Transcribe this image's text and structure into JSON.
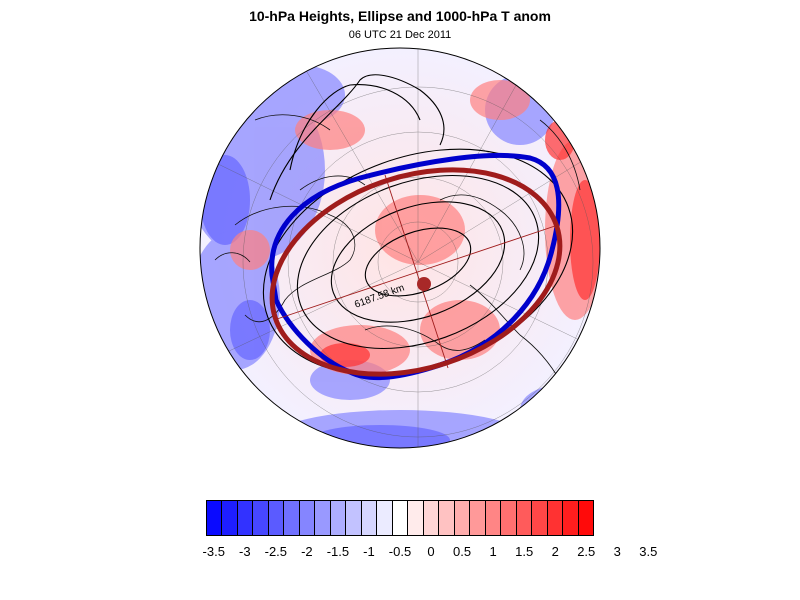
{
  "title": "10-hPa Heights, Ellipse and 1000-hPa T anom",
  "subtitle": "06 UTC 21 Dec 2011",
  "ellipse_label": "6187.58 km",
  "colorbar": {
    "colors": [
      "#0a0aff",
      "#1e1eff",
      "#3232ff",
      "#4747ff",
      "#5b5bff",
      "#7070ff",
      "#8585ff",
      "#9999ff",
      "#adadff",
      "#c2c2ff",
      "#d6d6ff",
      "#ebebff",
      "#ffffff",
      "#ffebeb",
      "#ffd6d6",
      "#ffc2c2",
      "#ffadad",
      "#ff9999",
      "#ff8585",
      "#ff7070",
      "#ff5b5b",
      "#ff4747",
      "#ff3232",
      "#ff1e1e",
      "#ff0a0a"
    ],
    "tick_labels": [
      "-3.5",
      "-3",
      "-2.5",
      "-2",
      "-1.5",
      "-1",
      "-0.5",
      "0",
      "0.5",
      "1",
      "1.5",
      "2",
      "2.5",
      "3",
      "3.5"
    ]
  },
  "colors": {
    "blue_contour": "#0000cc",
    "ellipse": "#a01c1c",
    "warm": "#ff6666",
    "cold": "#7777ff"
  }
}
